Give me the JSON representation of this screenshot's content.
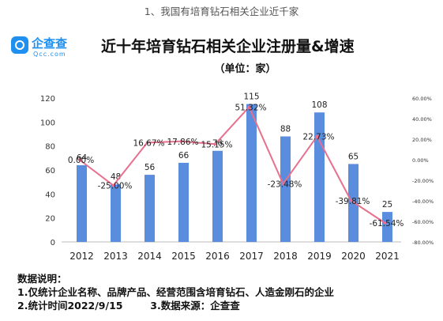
{
  "page_caption": "1、我国有培育钻石相关企业近千家",
  "logo": {
    "name_cn": "企查查",
    "name_en": "Qcc.com",
    "icon": "qcc-logo-icon"
  },
  "chart_data": {
    "type": "bar",
    "title": "近十年培育钻石相关企业注册量&增速",
    "subtitle": "（单位：家）",
    "categories": [
      "2012",
      "2013",
      "2014",
      "2015",
      "2016",
      "2017",
      "2018",
      "2019",
      "2020",
      "2021"
    ],
    "series": [
      {
        "kind": "bar",
        "axis": "left",
        "color": "#5b8ddf",
        "values": [
          64,
          48,
          56,
          66,
          76,
          115,
          88,
          108,
          65,
          25
        ],
        "labels": [
          "64",
          "48",
          "56",
          "66",
          "76",
          "115",
          "88",
          "108",
          "65",
          "25"
        ]
      },
      {
        "kind": "line",
        "axis": "right",
        "color": "#e8708c",
        "values": [
          0.0,
          -25.0,
          16.67,
          17.86,
          15.15,
          51.32,
          -23.48,
          22.73,
          -39.81,
          -61.54
        ],
        "labels": [
          "0.00%",
          "-25.00%",
          "16.67%",
          "17.86%",
          "15.15%",
          "51.32%",
          "-23.48%",
          "22.73%",
          "-39.81%",
          "-61.54%"
        ]
      }
    ],
    "ylim_left": [
      0,
      120
    ],
    "ylim_right": [
      -80,
      60
    ],
    "yticks_left": [
      "0",
      "20",
      "40",
      "60",
      "80",
      "100",
      "120"
    ],
    "yticks_right": [
      "-80.00%",
      "-60.00%",
      "-40.00%",
      "-20.00%",
      "0.00%",
      "20.00%",
      "40.00%",
      "60.00%"
    ],
    "grid": false,
    "legend": "none"
  },
  "notes": {
    "heading": "数据说明：",
    "line1": "1.仅统计企业名称、品牌产品、经营范围含培育钻石、人造金刚石的企业",
    "line2": "2.统计时间2022/9/15        3.数据来源：企查查"
  }
}
